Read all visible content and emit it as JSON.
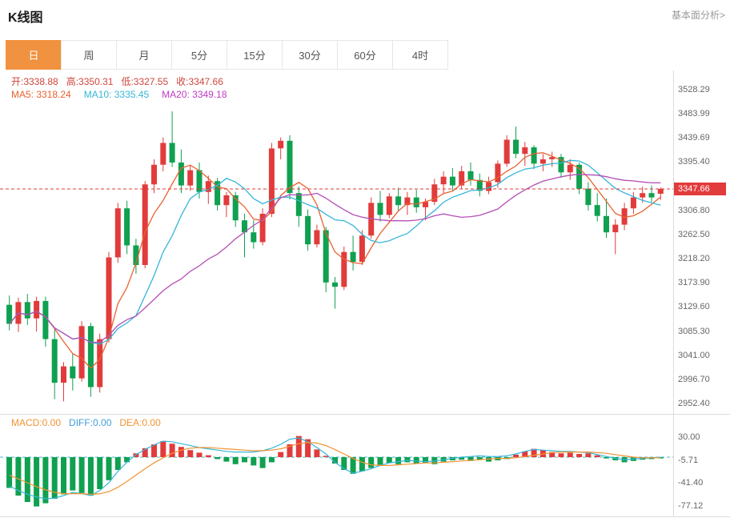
{
  "header": {
    "title": "K线图",
    "link": "基本面分析>"
  },
  "tabs": {
    "items": [
      "日",
      "周",
      "月",
      "5分",
      "15分",
      "30分",
      "60分",
      "4时"
    ],
    "active_index": 0
  },
  "ohlc": {
    "color": "#d0453c",
    "items": [
      {
        "label": "开:",
        "value": "3338.88"
      },
      {
        "label": "高:",
        "value": "3350.31"
      },
      {
        "label": "低:",
        "value": "3327.55"
      },
      {
        "label": "收:",
        "value": "3347.66"
      }
    ]
  },
  "ma_legend": {
    "items": [
      {
        "label": "MA5: ",
        "value": "3318.24",
        "color": "#e8622f"
      },
      {
        "label": "MA10: ",
        "value": "3335.45",
        "color": "#36b6d8"
      },
      {
        "label": "MA20: ",
        "value": "3349.18",
        "color": "#c23ac2"
      }
    ]
  },
  "macd_legend": {
    "items": [
      {
        "label": "MACD:",
        "value": "0.00",
        "color": "#f39332"
      },
      {
        "label": "DIFF:",
        "value": "0.00",
        "color": "#3f9fd8"
      },
      {
        "label": "DEA:",
        "value": "0.00",
        "color": "#f39332"
      }
    ]
  },
  "colors": {
    "up": "#e23b3b",
    "down": "#0fa050",
    "ma5": "#e8622f",
    "ma10": "#36b6d8",
    "ma20": "#b44fb4",
    "dif": "#36b6d8",
    "dea": "#f39332",
    "price_line": "#e23b3b",
    "zero_line": "#4db8c8",
    "axis_text": "#666666",
    "tag_bg": "#e23b3b"
  },
  "chart_data": {
    "type": "candlestick+macd",
    "title": "K线图",
    "main": {
      "ylim": [
        2952.4,
        3528.29
      ],
      "yticks": [
        3528.29,
        3483.99,
        3439.69,
        3395.4,
        3306.8,
        3262.5,
        3218.2,
        3173.9,
        3129.6,
        3085.3,
        3041.0,
        2996.7,
        2952.4
      ],
      "current_price": 3347.66,
      "ma_windows": [
        5,
        10,
        20
      ],
      "candles": [
        [
          3135,
          3152,
          3088,
          3100
        ],
        [
          3100,
          3148,
          3085,
          3140
        ],
        [
          3140,
          3155,
          3098,
          3110
        ],
        [
          3110,
          3150,
          3086,
          3142
        ],
        [
          3142,
          3150,
          3058,
          3072
        ],
        [
          3072,
          3090,
          2962,
          2992
        ],
        [
          2992,
          3030,
          2958,
          3022
        ],
        [
          3022,
          3046,
          2978,
          3000
        ],
        [
          3000,
          3105,
          2994,
          3096
        ],
        [
          3096,
          3102,
          2966,
          2984
        ],
        [
          2984,
          3082,
          2974,
          3072
        ],
        [
          3072,
          3232,
          3066,
          3222
        ],
        [
          3222,
          3322,
          3212,
          3312
        ],
        [
          3312,
          3326,
          3228,
          3244
        ],
        [
          3244,
          3256,
          3192,
          3208
        ],
        [
          3208,
          3362,
          3202,
          3356
        ],
        [
          3356,
          3402,
          3340,
          3392
        ],
        [
          3392,
          3442,
          3380,
          3432
        ],
        [
          3432,
          3490,
          3388,
          3396
        ],
        [
          3396,
          3420,
          3340,
          3354
        ],
        [
          3354,
          3392,
          3344,
          3382
        ],
        [
          3382,
          3396,
          3330,
          3342
        ],
        [
          3342,
          3372,
          3320,
          3362
        ],
        [
          3362,
          3368,
          3308,
          3318
        ],
        [
          3318,
          3342,
          3296,
          3336
        ],
        [
          3336,
          3342,
          3278,
          3290
        ],
        [
          3290,
          3302,
          3222,
          3268
        ],
        [
          3268,
          3290,
          3238,
          3250
        ],
        [
          3250,
          3312,
          3244,
          3302
        ],
        [
          3302,
          3432,
          3296,
          3422
        ],
        [
          3422,
          3442,
          3402,
          3436
        ],
        [
          3436,
          3446,
          3328,
          3340
        ],
        [
          3340,
          3352,
          3278,
          3298
        ],
        [
          3298,
          3310,
          3234,
          3246
        ],
        [
          3246,
          3282,
          3240,
          3272
        ],
        [
          3272,
          3278,
          3158,
          3176
        ],
        [
          3176,
          3186,
          3128,
          3168
        ],
        [
          3168,
          3242,
          3162,
          3232
        ],
        [
          3232,
          3262,
          3198,
          3214
        ],
        [
          3214,
          3272,
          3208,
          3262
        ],
        [
          3262,
          3332,
          3256,
          3322
        ],
        [
          3322,
          3344,
          3288,
          3300
        ],
        [
          3300,
          3340,
          3294,
          3334
        ],
        [
          3334,
          3350,
          3308,
          3318
        ],
        [
          3318,
          3342,
          3300,
          3332
        ],
        [
          3332,
          3346,
          3304,
          3314
        ],
        [
          3314,
          3330,
          3290,
          3324
        ],
        [
          3324,
          3366,
          3318,
          3356
        ],
        [
          3356,
          3380,
          3338,
          3370
        ],
        [
          3370,
          3386,
          3344,
          3354
        ],
        [
          3354,
          3390,
          3348,
          3380
        ],
        [
          3380,
          3396,
          3354,
          3364
        ],
        [
          3364,
          3376,
          3334,
          3344
        ],
        [
          3344,
          3370,
          3338,
          3360
        ],
        [
          3360,
          3400,
          3350,
          3394
        ],
        [
          3394,
          3446,
          3388,
          3438
        ],
        [
          3438,
          3462,
          3404,
          3412
        ],
        [
          3412,
          3434,
          3390,
          3424
        ],
        [
          3424,
          3428,
          3384,
          3394
        ],
        [
          3394,
          3412,
          3380,
          3402
        ],
        [
          3402,
          3416,
          3388,
          3406
        ],
        [
          3406,
          3412,
          3368,
          3378
        ],
        [
          3378,
          3402,
          3364,
          3392
        ],
        [
          3392,
          3396,
          3338,
          3348
        ],
        [
          3348,
          3360,
          3308,
          3318
        ],
        [
          3318,
          3340,
          3288,
          3298
        ],
        [
          3298,
          3330,
          3258,
          3268
        ],
        [
          3268,
          3292,
          3228,
          3282
        ],
        [
          3282,
          3322,
          3272,
          3312
        ],
        [
          3312,
          3342,
          3302,
          3332
        ],
        [
          3332,
          3352,
          3322,
          3340
        ],
        [
          3340,
          3354,
          3324,
          3332
        ],
        [
          3338.88,
          3350.31,
          3327.55,
          3347.66
        ]
      ]
    },
    "macd": {
      "yticks": [
        30.0,
        -5.71,
        -41.4,
        -77.12
      ],
      "hist": [
        -48,
        -60,
        -70,
        -77,
        -72,
        -65,
        -58,
        -52,
        -56,
        -60,
        -50,
        -36,
        -20,
        -8,
        6,
        14,
        20,
        25,
        21,
        16,
        11,
        7,
        3,
        -3,
        -7,
        -11,
        -8,
        -13,
        -17,
        -8,
        8,
        20,
        33,
        28,
        12,
        2,
        -10,
        -20,
        -26,
        -22,
        -17,
        -12,
        -9,
        -11,
        -8,
        -10,
        -9,
        -11,
        -7,
        -5,
        -4,
        -6,
        -4,
        -7,
        -5,
        -3,
        4,
        9,
        13,
        11,
        8,
        6,
        7,
        5,
        6,
        3,
        -2,
        -5,
        -8,
        -6,
        -4,
        -3,
        -2
      ],
      "dif": [
        -45,
        -52,
        -58,
        -62,
        -65,
        -64,
        -60,
        -55,
        -57,
        -60,
        -52,
        -40,
        -22,
        -8,
        4,
        12,
        19,
        25,
        24,
        21,
        18,
        15,
        13,
        11,
        9,
        8,
        8,
        8,
        10,
        14,
        20,
        28,
        30,
        24,
        15,
        5,
        -8,
        -18,
        -25,
        -22,
        -18,
        -13,
        -9,
        -7,
        -5,
        -6,
        -7,
        -6,
        -4,
        -2,
        0,
        1,
        2,
        1,
        1,
        2,
        5,
        9,
        12,
        11,
        10,
        9,
        9,
        8,
        7,
        4,
        1,
        -2,
        -4,
        -3,
        -2,
        -1,
        0
      ],
      "dea": [
        -28,
        -34,
        -40,
        -46,
        -51,
        -55,
        -57,
        -57,
        -57,
        -58,
        -57,
        -54,
        -47,
        -38,
        -28,
        -18,
        -9,
        -1,
        6,
        11,
        14,
        15,
        15,
        14,
        13,
        12,
        11,
        10,
        10,
        11,
        13,
        17,
        21,
        23,
        22,
        18,
        12,
        5,
        -2,
        -8,
        -12,
        -13,
        -13,
        -12,
        -11,
        -10,
        -9,
        -9,
        -8,
        -7,
        -6,
        -5,
        -4,
        -3,
        -2,
        -2,
        -1,
        1,
        3,
        5,
        7,
        8,
        8,
        8,
        8,
        7,
        6,
        4,
        2,
        0,
        -1,
        -1,
        -1
      ]
    }
  }
}
